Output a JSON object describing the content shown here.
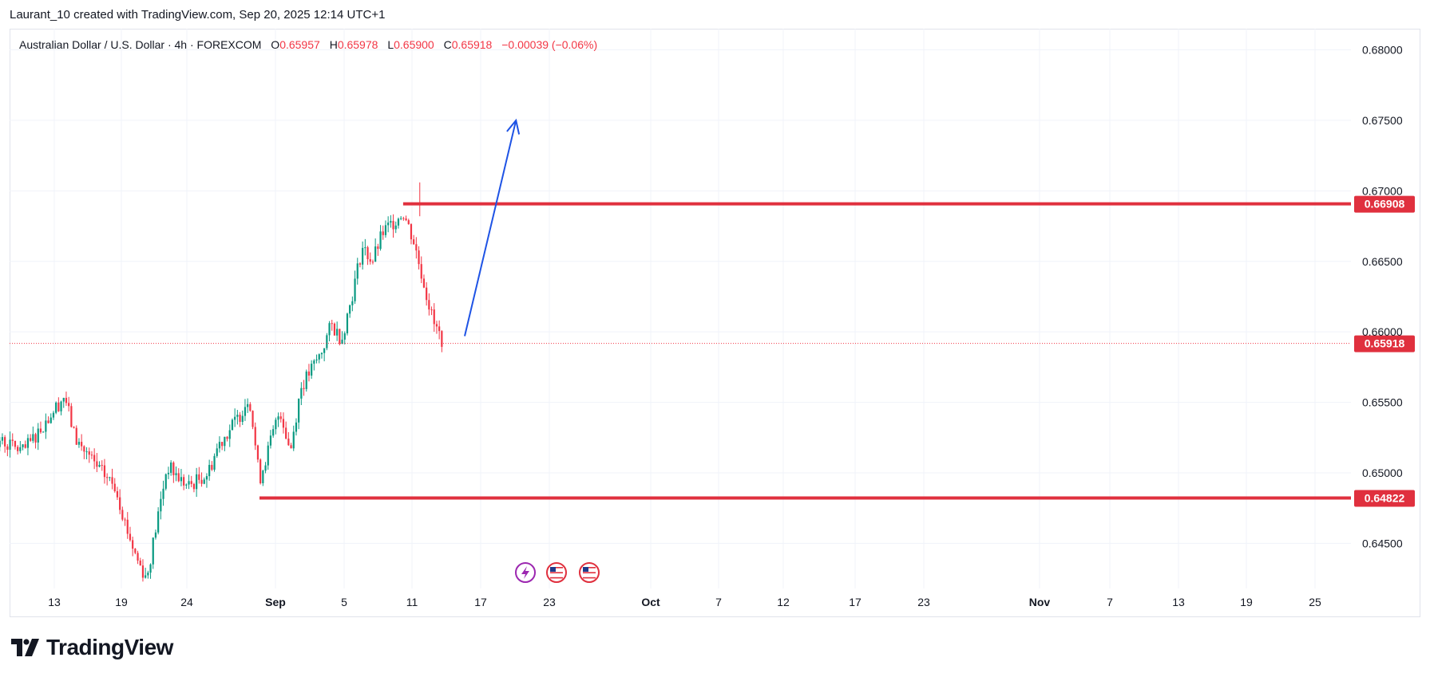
{
  "header": {
    "attribution": "Laurant_10 created with TradingView.com, Sep 20, 2025 12:14 UTC+1"
  },
  "symbol": {
    "name": "Australian Dollar / U.S. Dollar · 4h · FOREXCOM",
    "o_label": "O",
    "o_value": "0.65957",
    "h_label": "H",
    "h_value": "0.65978",
    "l_label": "L",
    "l_value": "0.65900",
    "c_label": "C",
    "c_value": "0.65918",
    "change": "−0.00039 (−0.06%)"
  },
  "logo": {
    "text": "TradingView",
    "icon": "tradingview-logo-icon"
  },
  "colors": {
    "up": "#089981",
    "down": "#f23645",
    "level_line": "#e0303e",
    "arrow": "#1e53e5",
    "grid": "#f0f3fa",
    "axis_text": "#131722"
  },
  "chart_data": {
    "type": "candlestick",
    "y_ticks": [
      "0.68000",
      "0.67500",
      "0.67000",
      "0.66500",
      "0.66000",
      "0.65500",
      "0.65000",
      "0.64500"
    ],
    "ylim": [
      0.6418,
      0.6815
    ],
    "x_ticks": [
      "13",
      "19",
      "24",
      "Sep",
      "5",
      "11",
      "17",
      "23",
      "Oct",
      "7",
      "12",
      "17",
      "23",
      "Nov",
      "7",
      "13",
      "19",
      "25"
    ],
    "bold_ticks": [
      "Sep",
      "Oct",
      "Nov"
    ],
    "price_labels": [
      {
        "text": "0.66908",
        "value": 0.66908
      },
      {
        "text": "0.65918",
        "value": 0.65918
      },
      {
        "text": "0.64822",
        "value": 0.64822
      }
    ],
    "resistance": {
      "value": 0.66908,
      "start": "Sep 16"
    },
    "support": {
      "value": 0.64822,
      "start": "Sep 2"
    },
    "current_price": 0.65918,
    "projection_arrow": {
      "from": {
        "date": "Sep 22",
        "price": 0.6597
      },
      "to": {
        "date": "Sep 27",
        "price": 0.675
      }
    },
    "event_markers": [
      "lightning-event-icon",
      "us-flag-icon",
      "us-flag-icon"
    ],
    "close_path": [
      [
        "Aug 8",
        0.6522
      ],
      [
        "Aug 10",
        0.6515
      ],
      [
        "Aug 12",
        0.6535
      ],
      [
        "Aug 14",
        0.6555
      ],
      [
        "Aug 15",
        0.6525
      ],
      [
        "Aug 17",
        0.6505
      ],
      [
        "Aug 19",
        0.649
      ],
      [
        "Aug 20",
        0.6462
      ],
      [
        "Aug 21",
        0.644
      ],
      [
        "Aug 22",
        0.6425
      ],
      [
        "Aug 24",
        0.6505
      ],
      [
        "Aug 26",
        0.649
      ],
      [
        "Aug 28",
        0.65
      ],
      [
        "Aug 29",
        0.652
      ],
      [
        "Aug 31",
        0.654
      ],
      [
        "Sep 1",
        0.6555
      ],
      [
        "Sep 2",
        0.6495
      ],
      [
        "Sep 3",
        0.652
      ],
      [
        "Sep 4",
        0.6545
      ],
      [
        "Sep 5",
        0.6515
      ],
      [
        "Sep 6",
        0.656
      ],
      [
        "Sep 8",
        0.6585
      ],
      [
        "Sep 9",
        0.6605
      ],
      [
        "Sep 10",
        0.6595
      ],
      [
        "Sep 11",
        0.6625
      ],
      [
        "Sep 12",
        0.666
      ],
      [
        "Sep 13",
        0.665
      ],
      [
        "Sep 14",
        0.667
      ],
      [
        "Sep 16",
        0.6685
      ],
      [
        "Sep 17",
        0.6665
      ],
      [
        "Sep 18",
        0.6635
      ],
      [
        "Sep 19",
        0.6605
      ],
      [
        "Sep 20",
        0.65918
      ]
    ]
  }
}
